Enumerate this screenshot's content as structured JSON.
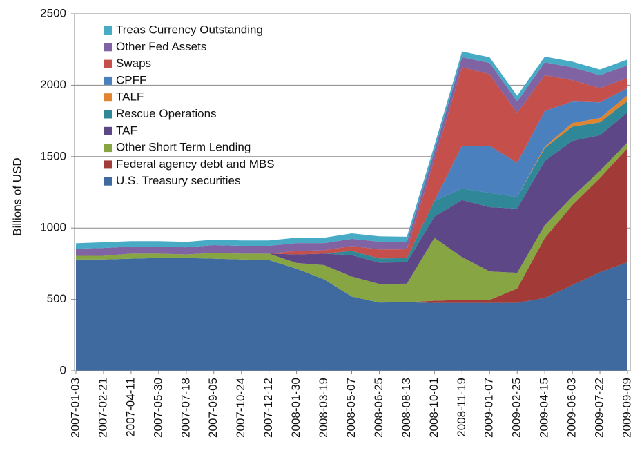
{
  "chart_data": {
    "type": "stacked-area",
    "y_label": "Billions of USD",
    "categories": [
      "2007-01-03",
      "2007-02-21",
      "2007-04-11",
      "2007-05-30",
      "2007-07-18",
      "2007-09-05",
      "2007-10-24",
      "2007-12-12",
      "2008-01-30",
      "2008-03-19",
      "2008-05-07",
      "2008-06-25",
      "2008-08-13",
      "2008-10-01",
      "2008-11-19",
      "2009-01-07",
      "2009-02-25",
      "2009-04-15",
      "2009-06-03",
      "2009-07-22",
      "2009-09-09"
    ],
    "ylim": [
      0,
      2500
    ],
    "yticks": [
      0,
      500,
      1000,
      1500,
      2000,
      2500
    ],
    "grid": true,
    "legend": "upper left",
    "series": [
      {
        "name": "U.S. Treasury securities",
        "color": "#3f6a9f",
        "values": [
          780,
          780,
          785,
          790,
          790,
          785,
          780,
          775,
          715,
          640,
          520,
          478,
          480,
          476,
          476,
          476,
          476,
          510,
          600,
          690,
          760
        ]
      },
      {
        "name": "Federal agency debt and MBS",
        "color": "#a23b37",
        "values": [
          0,
          0,
          0,
          0,
          0,
          0,
          0,
          0,
          0,
          0,
          0,
          0,
          0,
          15,
          20,
          20,
          100,
          420,
          560,
          660,
          800
        ]
      },
      {
        "name": "Other Short Term Lending",
        "color": "#88a544",
        "values": [
          25,
          25,
          35,
          30,
          25,
          40,
          40,
          45,
          40,
          100,
          140,
          130,
          130,
          440,
          300,
          200,
          110,
          90,
          60,
          50,
          40
        ]
      },
      {
        "name": "TAF",
        "color": "#5e4786",
        "values": [
          0,
          0,
          0,
          0,
          0,
          0,
          0,
          0,
          60,
          80,
          150,
          150,
          150,
          149,
          400,
          450,
          450,
          450,
          390,
          250,
          210
        ]
      },
      {
        "name": "Rescue Operations",
        "color": "#2f8797",
        "values": [
          0,
          0,
          0,
          0,
          0,
          0,
          0,
          0,
          0,
          0,
          29,
          29,
          29,
          110,
          80,
          100,
          80,
          90,
          100,
          90,
          80
        ]
      },
      {
        "name": "TALF",
        "color": "#e0842f",
        "values": [
          0,
          0,
          0,
          0,
          0,
          0,
          0,
          0,
          0,
          0,
          0,
          0,
          0,
          0,
          0,
          0,
          0,
          10,
          25,
          30,
          40
        ]
      },
      {
        "name": "CPFF",
        "color": "#4b80bf",
        "values": [
          0,
          0,
          0,
          0,
          0,
          0,
          0,
          0,
          0,
          0,
          0,
          0,
          0,
          0,
          300,
          330,
          240,
          250,
          150,
          110,
          50
        ]
      },
      {
        "name": "Swaps",
        "color": "#c5504b",
        "values": [
          0,
          0,
          0,
          0,
          0,
          0,
          0,
          0,
          24,
          24,
          35,
          62,
          62,
          290,
          550,
          500,
          350,
          250,
          150,
          100,
          70
        ]
      },
      {
        "name": "Other Fed Assets",
        "color": "#7f63a3",
        "values": [
          50,
          55,
          50,
          50,
          50,
          55,
          55,
          55,
          55,
          50,
          50,
          55,
          50,
          60,
          70,
          80,
          80,
          90,
          90,
          90,
          90
        ]
      },
      {
        "name": "Treas Currency Outstanding",
        "color": "#48abc6",
        "values": [
          38,
          40,
          38,
          38,
          38,
          38,
          38,
          38,
          38,
          38,
          38,
          38,
          38,
          40,
          40,
          40,
          40,
          40,
          40,
          40,
          40
        ]
      }
    ]
  }
}
